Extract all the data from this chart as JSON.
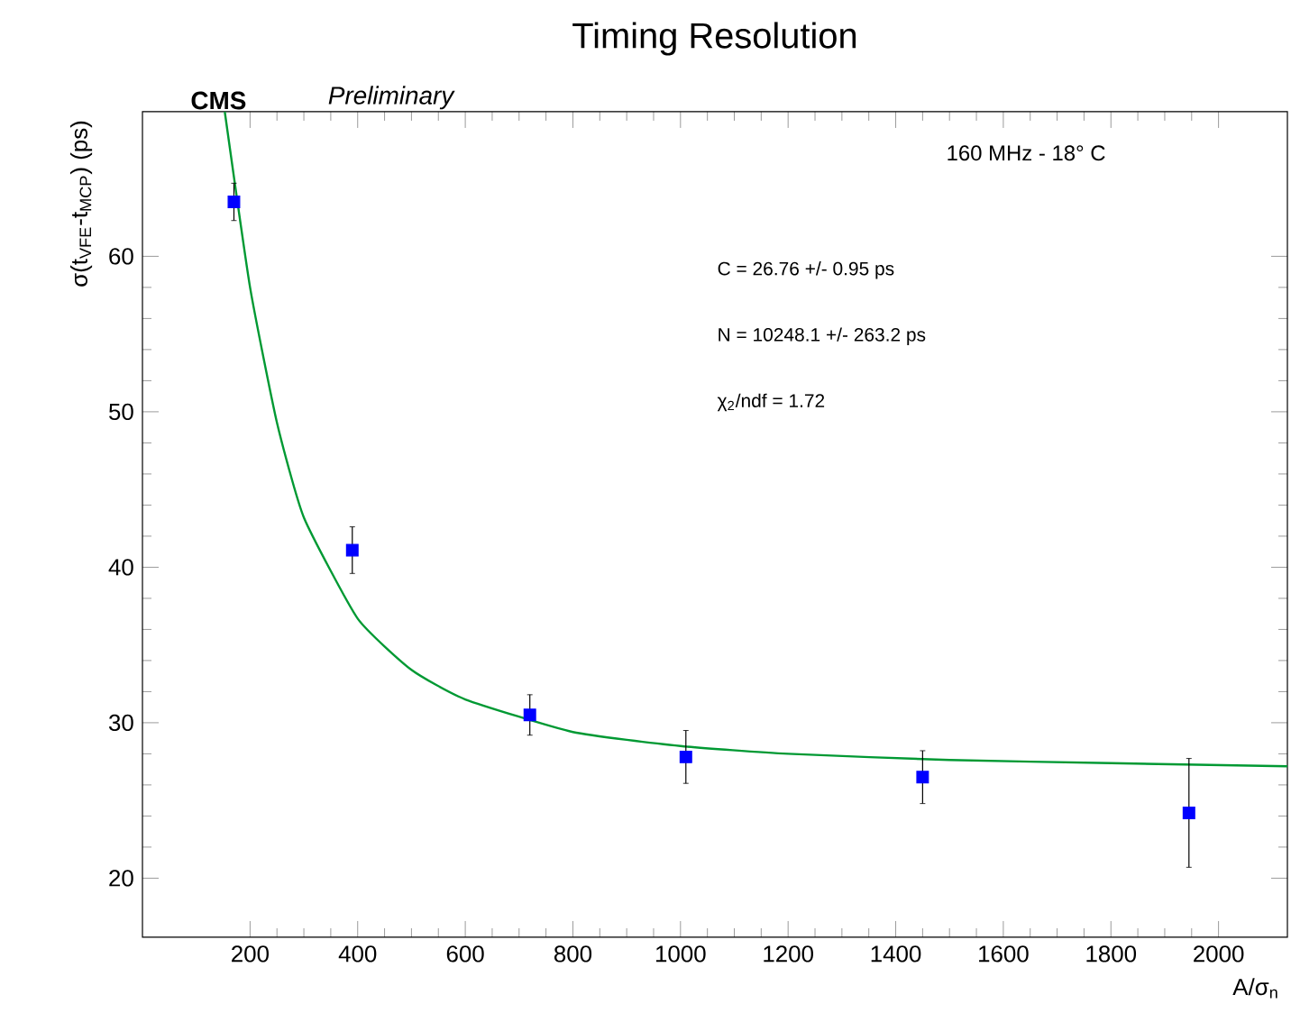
{
  "chart_data": {
    "type": "scatter",
    "title": "Timing Resolution",
    "xlabel": "A/σ$_{n}$",
    "ylabel": "σ(t$_{VFE}$-t$_{MCP}$) (ps)",
    "annotations": [
      "**CMS**",
      "*Preliminary*",
      "160 MHz - 18° C",
      "C = 26.76 +/- 0.95 ps",
      "N = 10248.1 +/- 263.2 ps",
      "χ$_{2}$/ndf = 1.72"
    ],
    "xlim": [
      0,
      2128
    ],
    "ylim": [
      16.2,
      69.3
    ],
    "xticks": [
      200,
      400,
      600,
      800,
      1000,
      1200,
      1400,
      1600,
      1800,
      2000
    ],
    "yticks": [
      20,
      30,
      40,
      50,
      60
    ],
    "grid": false,
    "series": [
      {
        "type": "line",
        "marker": "none",
        "color": "#009933",
        "x": [
          153,
          200,
          250,
          300,
          400,
          500,
          600,
          800,
          1000,
          1200,
          1500,
          1800,
          2128
        ],
        "values": [
          69.3,
          58.0,
          49.3,
          43.2,
          36.7,
          33.4,
          31.5,
          29.4,
          28.5,
          28.0,
          27.6,
          27.4,
          27.2
        ]
      },
      {
        "marker": "square",
        "color": "#0000ff",
        "x": [
          170,
          390,
          720,
          1010,
          1450,
          1945
        ],
        "values": [
          63.5,
          41.1,
          30.5,
          27.8,
          26.5,
          24.2
        ],
        "errors": [
          1.2,
          1.5,
          1.3,
          1.7,
          1.7,
          3.5
        ]
      }
    ]
  }
}
